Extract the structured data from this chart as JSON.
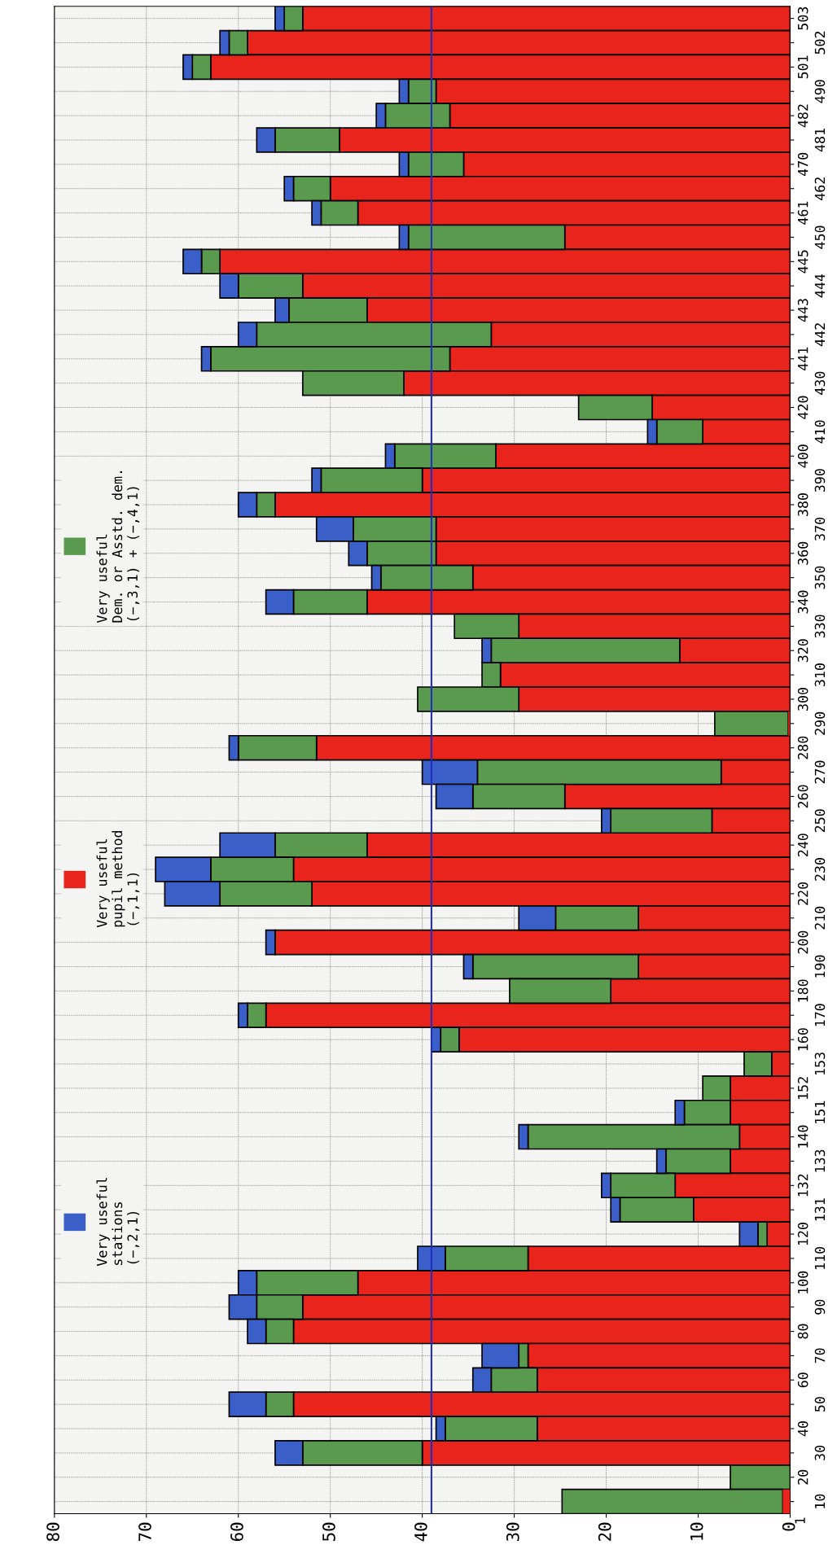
{
  "chart_data": {
    "type": "bar",
    "orientation": "horizontal",
    "stacked": true,
    "categories": [
      "503",
      "502",
      "501",
      "490",
      "482",
      "481",
      "470",
      "462",
      "461",
      "450",
      "445",
      "444",
      "443",
      "442",
      "441",
      "430",
      "420",
      "410",
      "400",
      "390",
      "380",
      "370",
      "360",
      "350",
      "340",
      "330",
      "320",
      "310",
      "300",
      "290",
      "280",
      "270",
      "260",
      "250",
      "240",
      "230",
      "220",
      "210",
      "200",
      "190",
      "180",
      "170",
      "160",
      "153",
      "152",
      "151",
      "140",
      "133",
      "132",
      "131",
      "120",
      "110",
      "100",
      "90",
      "80",
      "70",
      "60",
      "50",
      "40",
      "30",
      "20",
      "10"
    ],
    "series": [
      {
        "name": "Very useful\npupil method\n(−,1,1)",
        "color": "#e8241c",
        "values": [
          53,
          59,
          63,
          38.5,
          37,
          49,
          35.5,
          50,
          47,
          24.5,
          62,
          53,
          46,
          32.5,
          37,
          42,
          15,
          9.5,
          32,
          40,
          56,
          38.5,
          38.5,
          34.5,
          46,
          29.5,
          12,
          31.5,
          29.5,
          0.2,
          51.5,
          7.5,
          24.5,
          8.5,
          46,
          54,
          52,
          16.5,
          56,
          16.5,
          19.5,
          57,
          36,
          2,
          6.5,
          6.5,
          5.5,
          6.5,
          12.5,
          10.5,
          2.5,
          28.5,
          47,
          53,
          54,
          28.5,
          27.5,
          54,
          27.5,
          40,
          null,
          0.8
        ]
      },
      {
        "name": "Very useful\nDem. or Asstd. dem.\n(−,3,1) + (−,4,1)",
        "color": "#5a9a4e",
        "values": [
          2,
          2,
          2,
          3,
          7,
          7,
          6,
          4,
          4,
          17,
          2,
          7,
          8.5,
          25.5,
          26,
          11,
          8,
          5,
          11,
          11,
          2,
          9,
          7.5,
          10,
          8,
          7,
          20.5,
          2,
          11,
          8,
          8.5,
          26.5,
          10,
          11,
          10,
          9,
          10,
          9,
          null,
          18,
          11,
          2,
          2,
          3,
          3,
          5,
          23,
          7,
          7,
          8,
          1,
          9,
          11,
          5,
          3,
          1,
          5,
          3,
          10,
          13,
          6.5,
          24
        ]
      },
      {
        "name": "Very useful\nstations\n(−,2,1)",
        "color": "#3a5fc8",
        "values": [
          1,
          1,
          1,
          1,
          1,
          2,
          1,
          1,
          1,
          1,
          2,
          2,
          1.5,
          2,
          1,
          null,
          null,
          1,
          1,
          1,
          2,
          4,
          2,
          1,
          3,
          null,
          1,
          null,
          null,
          null,
          1,
          6,
          4,
          1,
          6,
          6,
          6,
          4,
          1,
          1,
          null,
          1,
          1,
          null,
          null,
          1,
          1,
          1,
          1,
          1,
          2,
          3,
          2,
          3,
          2,
          4,
          2,
          4,
          1,
          3,
          null,
          null
        ]
      }
    ],
    "xlim": [
      80,
      0
    ],
    "xticks": [
      0,
      10,
      20,
      30,
      40,
      50,
      60,
      70,
      80
    ],
    "ref_lines": [
      {
        "axis": "x",
        "value": 39,
        "color": "#1f2fbf"
      }
    ],
    "annotations": [
      "1"
    ],
    "grid": true,
    "legend": "left"
  }
}
